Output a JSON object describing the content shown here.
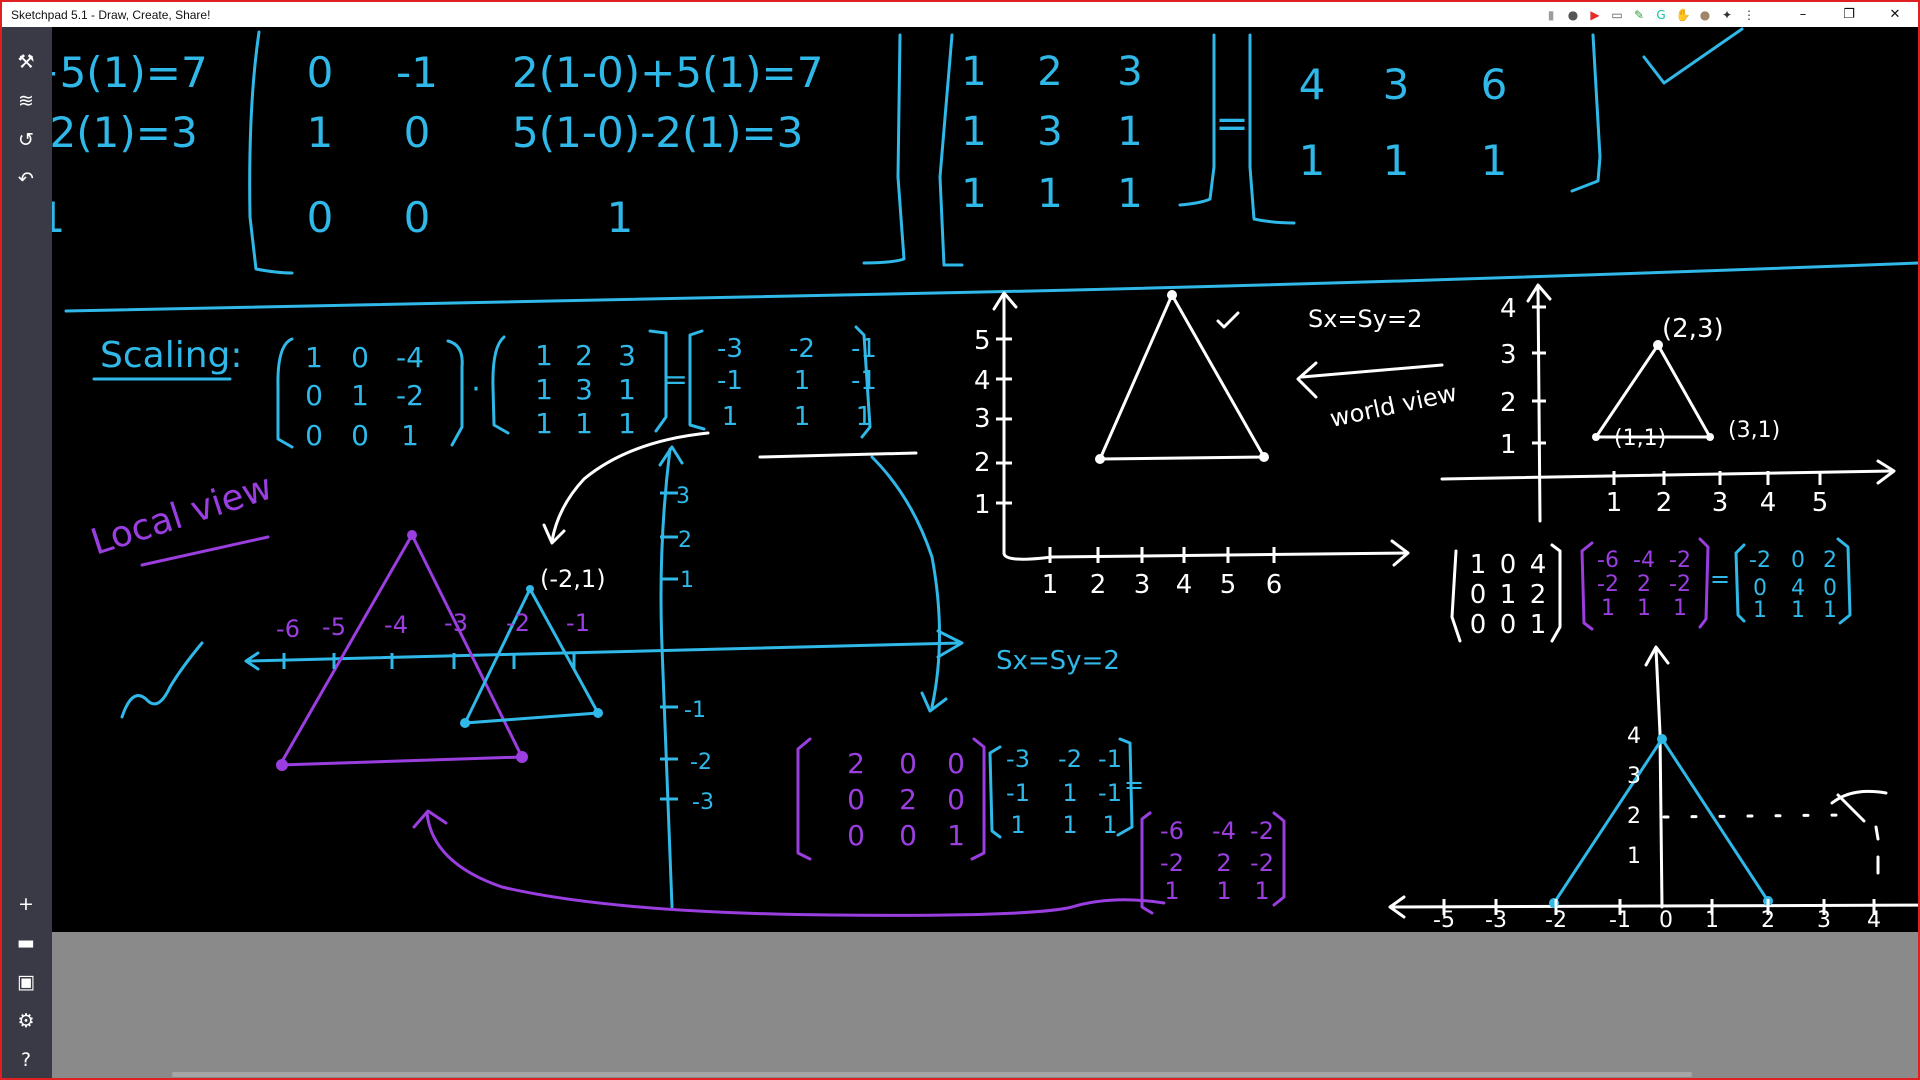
{
  "window": {
    "title": "Sketchpad 5.1 - Draw, Create, Share!",
    "controls": {
      "minimize": "–",
      "maximize": "❐",
      "close": "✕"
    }
  },
  "extensions": [
    {
      "name": "bookmark-icon",
      "glyph": "▮",
      "color": "#9e9e9e"
    },
    {
      "name": "map-pin-icon",
      "glyph": "●",
      "color": "#555555"
    },
    {
      "name": "youtube-icon",
      "glyph": "▶",
      "color": "#e52d27"
    },
    {
      "name": "cast-icon",
      "glyph": "▭",
      "color": "#555555"
    },
    {
      "name": "feather-icon",
      "glyph": "✎",
      "color": "#2e9e3e"
    },
    {
      "name": "grammarly-icon",
      "glyph": "G",
      "color": "#15c39a"
    },
    {
      "name": "adblock-icon",
      "glyph": "✋",
      "color": "#e0241e"
    },
    {
      "name": "profile-icon",
      "glyph": "●",
      "color": "#a0856a"
    },
    {
      "name": "puzzle-icon",
      "glyph": "✦",
      "color": "#333333"
    },
    {
      "name": "kebab-menu-icon",
      "glyph": "⋮",
      "color": "#333333"
    }
  ],
  "sidebar": {
    "top": [
      {
        "name": "tools-icon",
        "glyph": "⚒"
      },
      {
        "name": "layers-icon",
        "glyph": "≋"
      },
      {
        "name": "history-icon",
        "glyph": "↺"
      },
      {
        "name": "undo-icon",
        "glyph": "↶"
      }
    ],
    "bottom": [
      {
        "name": "new-icon",
        "glyph": "+"
      },
      {
        "name": "open-folder-icon",
        "glyph": "▬"
      },
      {
        "name": "save-icon",
        "glyph": "▣"
      },
      {
        "name": "settings-icon",
        "glyph": "⚙"
      },
      {
        "name": "help-icon",
        "glyph": "?"
      }
    ]
  },
  "colors": {
    "canvas": "#000000",
    "cyan": "#2fb8e8",
    "purple": "#9a3ee0",
    "white": "#ffffff",
    "sidebar": "#3a3a46",
    "titlebar": "#ffffff",
    "frame": "#e02020"
  },
  "drawing": {
    "top_matrix_a": [
      [
        "0",
        "-1",
        "2(1-0)+5(1)=7"
      ],
      [
        "1",
        "0",
        "5(1-0)-2(1)=3"
      ],
      [
        "0",
        "0",
        "1"
      ]
    ],
    "top_matrix_b": [
      [
        "1",
        "2",
        "3"
      ],
      [
        "1",
        "3",
        "1"
      ],
      [
        "1",
        "1",
        "1"
      ]
    ],
    "top_equals": "=",
    "top_matrix_c": [
      [
        "4",
        "3",
        "6"
      ],
      [
        "1",
        "1",
        "1"
      ]
    ],
    "scaling_label": "Scaling:",
    "scaling_matrix": [
      [
        "1",
        "0",
        "-4"
      ],
      [
        "0",
        "1",
        "-2"
      ],
      [
        "0",
        "0",
        "1"
      ]
    ],
    "dot": "·",
    "points_matrix": [
      [
        "1",
        "2",
        "3"
      ],
      [
        "1",
        "3",
        "1"
      ],
      [
        "1",
        "1",
        "1"
      ]
    ],
    "equals": "=",
    "result_matrix": [
      [
        "-3",
        "-2",
        "-1"
      ],
      [
        "-1",
        "1",
        "-1"
      ],
      [
        "1",
        "1",
        "1"
      ]
    ],
    "local_view_label": "Local view",
    "local_x_ticks": [
      "-6",
      "-5",
      "-4",
      "-3",
      "-2",
      "-1"
    ],
    "local_y_ticks_pos": [
      "3",
      "2",
      "1"
    ],
    "local_y_ticks_neg": [
      "-1",
      "-2",
      "-3"
    ],
    "point_label_local": "(-2,1)",
    "sxsy_label_1": "Sx=Sy=2",
    "sxsy_label_2": "Sx=Sy=2",
    "world_view_label": "world view",
    "world1_x_ticks": [
      "1",
      "2",
      "3",
      "4",
      "5",
      "6"
    ],
    "world1_y_ticks": [
      "5",
      "4",
      "3",
      "2",
      "1"
    ],
    "world2_x_ticks": [
      "1",
      "2",
      "3",
      "4",
      "5"
    ],
    "world2_y_ticks": [
      "4",
      "3",
      "2",
      "1"
    ],
    "world2_pts": [
      "(1,1)",
      "(2,3)",
      "(3,1)"
    ],
    "scale_matrix": [
      [
        "2",
        "0",
        "0"
      ],
      [
        "0",
        "2",
        "0"
      ],
      [
        "0",
        "0",
        "1"
      ]
    ],
    "scale_mult_b": [
      [
        "-3",
        "-2",
        "-1"
      ],
      [
        "-1",
        "1",
        "-1"
      ],
      [
        "1",
        "1",
        "1"
      ]
    ],
    "scale_result": [
      [
        "-6",
        "-4",
        "-2"
      ],
      [
        "-2",
        "2",
        "-2"
      ],
      [
        "1",
        "1",
        "1"
      ]
    ],
    "translate_matrix": [
      [
        "1",
        "0",
        "4"
      ],
      [
        "0",
        "1",
        "2"
      ],
      [
        "0",
        "0",
        "1"
      ]
    ],
    "translate_mult_b": [
      [
        "-6",
        "-4",
        "-2"
      ],
      [
        "-2",
        "2",
        "-2"
      ],
      [
        "1",
        "1",
        "1"
      ]
    ],
    "translate_result": [
      [
        "-2",
        "0",
        "2"
      ],
      [
        "0",
        "4",
        "0"
      ],
      [
        "1",
        "1",
        "1"
      ]
    ],
    "bottom_x_ticks": [
      "-5",
      "-3",
      "-2",
      "-1",
      "0",
      "1",
      "2",
      "3",
      "4"
    ],
    "bottom_y_ticks": [
      "4",
      "3",
      "2",
      "1"
    ]
  }
}
